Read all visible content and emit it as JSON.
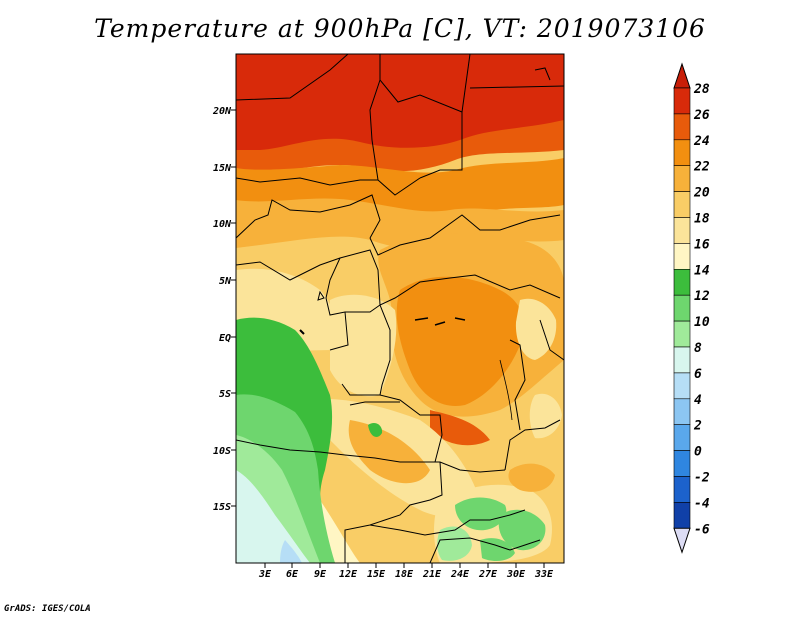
{
  "title": "Temperature at 900hPa [C], VT: 2019073106",
  "credit": "GrADS: IGES/COLA",
  "lat_labels": [
    "20N",
    "15N",
    "10N",
    "5N",
    "EQ",
    "5S",
    "10S",
    "15S"
  ],
  "lon_labels": [
    "3E",
    "6E",
    "9E",
    "12E",
    "15E",
    "18E",
    "21E",
    "24E",
    "27E",
    "30E",
    "33E"
  ],
  "colorbar": {
    "labels": [
      "28",
      "26",
      "24",
      "22",
      "20",
      "18",
      "16",
      "14",
      "12",
      "10",
      "8",
      "6",
      "4",
      "2",
      "0",
      "-2",
      "-4",
      "-6"
    ],
    "colors": [
      "#d82a0a",
      "#e85b0b",
      "#f28f10",
      "#f7b13a",
      "#f9cd66",
      "#fbe49a",
      "#fff6c4",
      "#3cbd3c",
      "#6ed66e",
      "#a0ea9a",
      "#d8f6ee",
      "#b6def6",
      "#8cc6f2",
      "#5aa8ec",
      "#2f86e0",
      "#1c62cc",
      "#1040a8",
      "#0a1e78"
    ],
    "over_color": "#c81e08",
    "under_color": "#dcdcf4"
  }
}
